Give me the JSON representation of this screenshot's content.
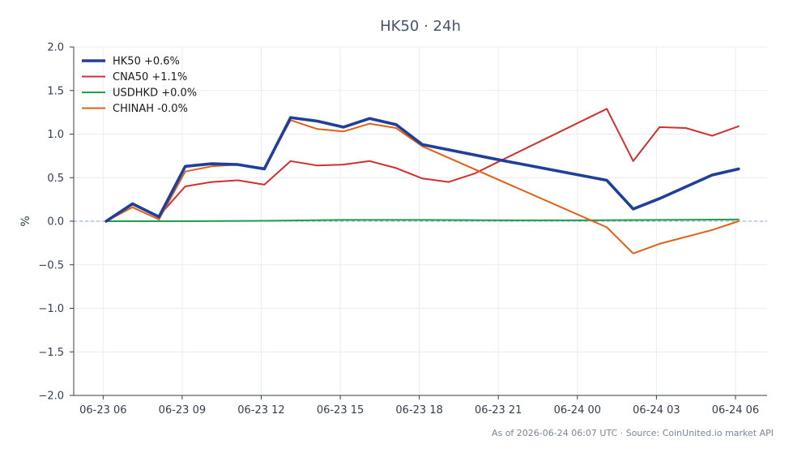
{
  "chart_data": {
    "type": "line",
    "title": "HK50 · 24h",
    "ylabel": "%",
    "xlabel": "",
    "ylim": [
      -2.0,
      2.0
    ],
    "xlim": [
      "06-23 04:53",
      "06-24 07:12"
    ],
    "y_ticks": [
      2.0,
      1.5,
      1.0,
      0.5,
      0.0,
      -0.5,
      -1.0,
      -1.5,
      -2.0
    ],
    "y_tick_labels": [
      "2.0",
      "1.5",
      "1.0",
      "0.5",
      "0.0",
      "−0.5",
      "−1.0",
      "−1.5",
      "−2.0"
    ],
    "x_ticks": [
      "06-23 06:00",
      "06-23 09:00",
      "06-23 12:00",
      "06-23 15:00",
      "06-23 18:00",
      "06-23 21:00",
      "06-24 00:00",
      "06-24 03:00",
      "06-24 06:00"
    ],
    "x_tick_labels": [
      "06-23 06",
      "06-23 09",
      "06-23 12",
      "06-23 15",
      "06-23 18",
      "06-23 21",
      "06-24 00",
      "06-24 03",
      "06-24 06"
    ],
    "grid": true,
    "zero_line": true,
    "legend_position": "top-left",
    "series": [
      {
        "name": "HK50 +0.6%",
        "color": "#1f3f99",
        "weight": "bold",
        "points": [
          [
            "06-23 06:07",
            0.0
          ],
          [
            "06-23 07:07",
            0.2
          ],
          [
            "06-23 08:07",
            0.05
          ],
          [
            "06-23 09:07",
            0.63
          ],
          [
            "06-23 10:07",
            0.66
          ],
          [
            "06-23 11:07",
            0.65
          ],
          [
            "06-23 12:07",
            0.6
          ],
          [
            "06-23 13:07",
            1.19
          ],
          [
            "06-23 14:07",
            1.15
          ],
          [
            "06-23 15:07",
            1.08
          ],
          [
            "06-23 16:07",
            1.18
          ],
          [
            "06-23 17:07",
            1.11
          ],
          [
            "06-23 18:07",
            0.88
          ],
          [
            "06-23 21:07",
            0.7
          ],
          [
            "06-24 01:07",
            0.47
          ],
          [
            "06-24 02:07",
            0.14
          ],
          [
            "06-24 03:07",
            0.26
          ],
          [
            "06-24 05:07",
            0.53
          ],
          [
            "06-24 06:07",
            0.6
          ]
        ]
      },
      {
        "name": "CNA50 +1.1%",
        "color": "#d03030",
        "weight": "normal",
        "points": [
          [
            "06-23 06:07",
            0.0
          ],
          [
            "06-23 07:07",
            0.19
          ],
          [
            "06-23 08:07",
            0.06
          ],
          [
            "06-23 09:07",
            0.4
          ],
          [
            "06-23 10:07",
            0.45
          ],
          [
            "06-23 11:07",
            0.47
          ],
          [
            "06-23 12:07",
            0.42
          ],
          [
            "06-23 13:07",
            0.69
          ],
          [
            "06-23 14:07",
            0.64
          ],
          [
            "06-23 15:07",
            0.65
          ],
          [
            "06-23 16:07",
            0.69
          ],
          [
            "06-23 17:07",
            0.61
          ],
          [
            "06-23 18:07",
            0.49
          ],
          [
            "06-23 19:07",
            0.45
          ],
          [
            "06-23 20:07",
            0.55
          ],
          [
            "06-23 21:07",
            0.7
          ],
          [
            "06-24 01:07",
            1.29
          ],
          [
            "06-24 02:07",
            0.69
          ],
          [
            "06-24 03:07",
            1.08
          ],
          [
            "06-24 04:07",
            1.07
          ],
          [
            "06-24 05:07",
            0.98
          ],
          [
            "06-24 06:07",
            1.09
          ]
        ]
      },
      {
        "name": "USDHKD +0.0%",
        "color": "#1e9e4a",
        "weight": "normal",
        "points": [
          [
            "06-23 06:07",
            0.0
          ],
          [
            "06-23 09:07",
            0.0
          ],
          [
            "06-23 12:07",
            0.005
          ],
          [
            "06-23 15:07",
            0.015
          ],
          [
            "06-23 18:07",
            0.015
          ],
          [
            "06-23 21:07",
            0.01
          ],
          [
            "06-24 00:07",
            0.01
          ],
          [
            "06-24 03:07",
            0.015
          ],
          [
            "06-24 06:07",
            0.02
          ]
        ]
      },
      {
        "name": "CHINAH -0.0%",
        "color": "#e06018",
        "weight": "normal",
        "points": [
          [
            "06-23 06:07",
            0.0
          ],
          [
            "06-23 07:07",
            0.16
          ],
          [
            "06-23 08:07",
            0.02
          ],
          [
            "06-23 09:07",
            0.57
          ],
          [
            "06-23 10:07",
            0.63
          ],
          [
            "06-23 11:07",
            0.65
          ],
          [
            "06-23 12:07",
            0.61
          ],
          [
            "06-23 13:07",
            1.16
          ],
          [
            "06-23 14:07",
            1.06
          ],
          [
            "06-23 15:07",
            1.03
          ],
          [
            "06-23 16:07",
            1.12
          ],
          [
            "06-23 17:07",
            1.07
          ],
          [
            "06-23 18:07",
            0.86
          ],
          [
            "06-24 01:07",
            -0.07
          ],
          [
            "06-24 02:07",
            -0.37
          ],
          [
            "06-24 03:07",
            -0.26
          ],
          [
            "06-24 05:07",
            -0.1
          ],
          [
            "06-24 06:07",
            0.0
          ]
        ]
      }
    ],
    "footer": "As of 2026-06-24 06:07 UTC · Source: CoinUnited.io market API"
  }
}
